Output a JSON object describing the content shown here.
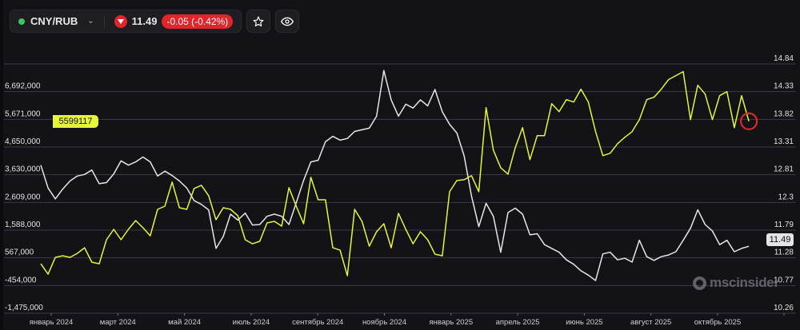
{
  "header": {
    "symbol": "CNY/RUB",
    "status_color": "#35c95a",
    "price": "11.49",
    "change": "-0.05 (-0.42%)",
    "direction": "down",
    "change_color": "#e0252b",
    "icons": [
      "chevron-down-icon",
      "down-arrow-icon",
      "star-icon",
      "eye-icon"
    ]
  },
  "watermark": "mscinsider",
  "chart_data": {
    "type": "line",
    "grid": true,
    "left_axis": {
      "ticks": [
        "6,692,000",
        "5,671,000",
        "4,650,000",
        "3,630,000",
        "2,609,000",
        "1,588,000",
        "567,000",
        "-454,000",
        "-1,475,000"
      ],
      "range": [
        -1475000,
        6692000
      ]
    },
    "right_axis": {
      "ticks": [
        "14.84",
        "14.33",
        "13.82",
        "13.31",
        "12.81",
        "12.3",
        "11.79",
        "11.28",
        "10.77",
        "10.26"
      ],
      "range": [
        10.26,
        14.84
      ]
    },
    "x_ticks": [
      "январь 2024",
      "март 2024",
      "май 2024",
      "июль 2024",
      "сентябрь 2024",
      "ноябрь 2024",
      "январь 2025",
      "апрель 2025",
      "июнь 2025",
      "август 2025",
      "октябрь 2025"
    ],
    "x": [
      "2023-12-22",
      "2023-12-29",
      "2024-01-05",
      "2024-01-12",
      "2024-01-19",
      "2024-01-26",
      "2024-02-02",
      "2024-02-09",
      "2024-02-16",
      "2024-02-23",
      "2024-03-01",
      "2024-03-08",
      "2024-03-15",
      "2024-03-22",
      "2024-03-29",
      "2024-04-05",
      "2024-04-12",
      "2024-04-19",
      "2024-04-26",
      "2024-05-03",
      "2024-05-10",
      "2024-05-17",
      "2024-05-24",
      "2024-05-31",
      "2024-06-07",
      "2024-06-14",
      "2024-06-21",
      "2024-06-28",
      "2024-07-05",
      "2024-07-12",
      "2024-07-19",
      "2024-07-26",
      "2024-08-02",
      "2024-08-09",
      "2024-08-16",
      "2024-08-23",
      "2024-08-30",
      "2024-09-06",
      "2024-09-13",
      "2024-09-20",
      "2024-09-27",
      "2024-10-04",
      "2024-10-11",
      "2024-10-18",
      "2024-10-25",
      "2024-11-01",
      "2024-11-08",
      "2024-11-15",
      "2024-11-22",
      "2024-11-29",
      "2024-12-06",
      "2024-12-13",
      "2024-12-20",
      "2024-12-27",
      "2025-01-03",
      "2025-01-10",
      "2025-01-17",
      "2025-01-24",
      "2025-01-31",
      "2025-02-07",
      "2025-02-14",
      "2025-02-21",
      "2025-02-28",
      "2025-03-07",
      "2025-03-14",
      "2025-03-21",
      "2025-03-28",
      "2025-04-04",
      "2025-04-11",
      "2025-04-18",
      "2025-04-25",
      "2025-05-02",
      "2025-05-09",
      "2025-05-16",
      "2025-05-23",
      "2025-05-30",
      "2025-06-06",
      "2025-06-13",
      "2025-06-20",
      "2025-06-27",
      "2025-07-04",
      "2025-07-11",
      "2025-07-18",
      "2025-07-25",
      "2025-08-01",
      "2025-08-08",
      "2025-08-15",
      "2025-08-22",
      "2025-08-29",
      "2025-09-05",
      "2025-09-12",
      "2025-09-19",
      "2025-09-26",
      "2025-10-03",
      "2025-10-10",
      "2025-10-17",
      "2025-10-24",
      "2025-10-31"
    ],
    "series": [
      {
        "axis": "right",
        "color": "#e6e6e8",
        "last_label": "11.49",
        "values": [
          12.98,
          12.56,
          12.36,
          12.54,
          12.69,
          12.78,
          12.81,
          12.89,
          12.64,
          12.66,
          12.82,
          13.06,
          12.98,
          13.04,
          13.13,
          13.04,
          12.78,
          12.87,
          12.79,
          12.69,
          12.56,
          12.33,
          12.26,
          12.16,
          11.45,
          11.67,
          12.08,
          11.97,
          12.1,
          11.88,
          11.89,
          12.04,
          12.08,
          12.04,
          11.89,
          12.29,
          12.7,
          13.04,
          13.07,
          13.41,
          13.51,
          13.44,
          13.47,
          13.6,
          13.63,
          13.66,
          13.88,
          14.72,
          14.18,
          13.88,
          14.1,
          14.03,
          14.18,
          14.07,
          14.37,
          13.96,
          13.73,
          13.57,
          13.15,
          12.41,
          11.85,
          12.28,
          12.04,
          11.38,
          12.11,
          12.19,
          12.08,
          11.7,
          11.72,
          11.52,
          11.45,
          11.38,
          11.24,
          11.16,
          11.04,
          10.96,
          10.86,
          11.35,
          11.38,
          11.24,
          11.27,
          11.2,
          11.6,
          11.3,
          11.23,
          11.3,
          11.33,
          11.39,
          11.6,
          11.82,
          12.16,
          11.89,
          11.77,
          11.52,
          11.6,
          11.39,
          11.45,
          11.49
        ]
      },
      {
        "axis": "left",
        "color": "#e5f53a",
        "last_label": "5599117",
        "values": [
          348000,
          -36000,
          584000,
          643000,
          584000,
          731000,
          938000,
          407000,
          348000,
          1233000,
          1616000,
          1233000,
          1616000,
          1941000,
          1675000,
          1380000,
          2354000,
          2472000,
          3357000,
          2413000,
          2354000,
          3121000,
          3239000,
          2856000,
          1971000,
          2413000,
          2354000,
          2118000,
          1233000,
          1085000,
          1174000,
          1853000,
          1912000,
          1734000,
          3151000,
          2472000,
          1823000,
          3535000,
          2708000,
          2708000,
          938000,
          849000,
          -95000,
          2354000,
          1912000,
          997000,
          1528000,
          1823000,
          938000,
          2207000,
          1616000,
          1085000,
          1528000,
          1233000,
          702000,
          643000,
          3003000,
          3417000,
          3446000,
          3594000,
          3003000,
          6102000,
          4538000,
          3889000,
          3653000,
          4626000,
          5364000,
          4184000,
          5069000,
          5069000,
          6249000,
          5954000,
          6397000,
          6308000,
          6781000,
          6308000,
          5217000,
          4331000,
          4420000,
          4774000,
          5010000,
          5217000,
          5659000,
          6397000,
          6485000,
          6781000,
          7135000,
          7282000,
          7430000,
          5659000,
          6928000,
          6603000,
          5659000,
          6544000,
          6692000,
          5364000,
          6544000,
          5599117
        ]
      }
    ],
    "annotation": "red circle at latest point of yellow series",
    "annotation_color": "#e0252b"
  }
}
